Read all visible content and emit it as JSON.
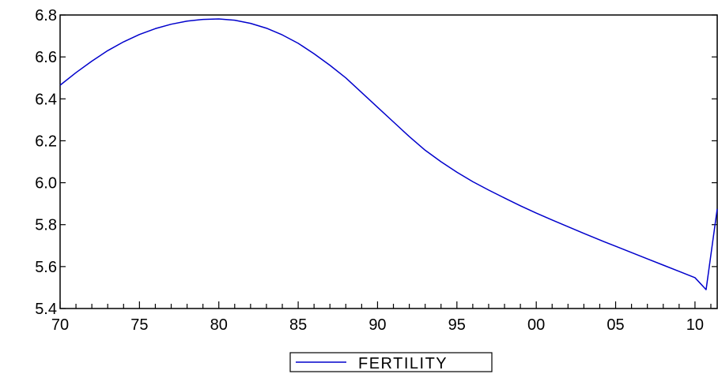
{
  "chart_data": {
    "type": "line",
    "title": "",
    "xlabel": "",
    "ylabel": "",
    "x_unit": "year",
    "xlim": [
      1970,
      2011.4
    ],
    "ylim": [
      5.4,
      6.8
    ],
    "x_ticks": [
      {
        "value": 1970,
        "label": "70"
      },
      {
        "value": 1975,
        "label": "75"
      },
      {
        "value": 1980,
        "label": "80"
      },
      {
        "value": 1985,
        "label": "85"
      },
      {
        "value": 1990,
        "label": "90"
      },
      {
        "value": 1995,
        "label": "95"
      },
      {
        "value": 2000,
        "label": "00"
      },
      {
        "value": 2005,
        "label": "05"
      },
      {
        "value": 2010,
        "label": "10"
      }
    ],
    "y_ticks": [
      {
        "value": 5.4,
        "label": "5.4"
      },
      {
        "value": 5.6,
        "label": "5.6"
      },
      {
        "value": 5.8,
        "label": "5.8"
      },
      {
        "value": 6.0,
        "label": "6.0"
      },
      {
        "value": 6.2,
        "label": "6.2"
      },
      {
        "value": 6.4,
        "label": "6.4"
      },
      {
        "value": 6.6,
        "label": "6.6"
      },
      {
        "value": 6.8,
        "label": "6.8"
      }
    ],
    "grid": false,
    "legend_position": "bottom-center",
    "series": [
      {
        "name": "FERTILITY",
        "color": "#0000cc",
        "points": [
          [
            1970,
            6.465
          ],
          [
            1971,
            6.525
          ],
          [
            1972,
            6.58
          ],
          [
            1973,
            6.63
          ],
          [
            1974,
            6.672
          ],
          [
            1975,
            6.707
          ],
          [
            1976,
            6.735
          ],
          [
            1977,
            6.756
          ],
          [
            1978,
            6.771
          ],
          [
            1979,
            6.779
          ],
          [
            1980,
            6.781
          ],
          [
            1981,
            6.775
          ],
          [
            1982,
            6.76
          ],
          [
            1983,
            6.737
          ],
          [
            1984,
            6.705
          ],
          [
            1985,
            6.665
          ],
          [
            1986,
            6.615
          ],
          [
            1987,
            6.56
          ],
          [
            1988,
            6.5
          ],
          [
            1989,
            6.43
          ],
          [
            1990,
            6.36
          ],
          [
            1991,
            6.29
          ],
          [
            1992,
            6.22
          ],
          [
            1993,
            6.155
          ],
          [
            1994,
            6.1
          ],
          [
            1995,
            6.05
          ],
          [
            1996,
            6.005
          ],
          [
            1997,
            5.965
          ],
          [
            1998,
            5.927
          ],
          [
            1999,
            5.89
          ],
          [
            2000,
            5.855
          ],
          [
            2001,
            5.822
          ],
          [
            2002,
            5.79
          ],
          [
            2003,
            5.758
          ],
          [
            2004,
            5.727
          ],
          [
            2005,
            5.697
          ],
          [
            2006,
            5.667
          ],
          [
            2007,
            5.637
          ],
          [
            2008,
            5.607
          ],
          [
            2009,
            5.577
          ],
          [
            2010,
            5.547
          ],
          [
            2010.7,
            5.49
          ],
          [
            2011.4,
            5.875
          ]
        ]
      }
    ]
  }
}
